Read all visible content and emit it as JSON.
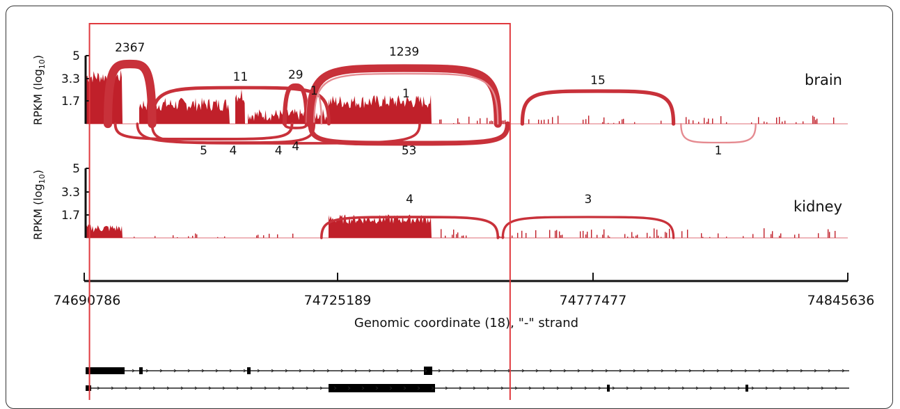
{
  "chart_data": {
    "type": "sashimi",
    "tracks": [
      {
        "name": "brain",
        "ylabel": "RPKM (log",
        "ylabel_sub": "10",
        "ylabel_close": ")",
        "y_ticks": [
          "5",
          "3.3",
          "1.7"
        ],
        "junctions_above": [
          {
            "count": "2367",
            "from": 74694000,
            "to": 74700000,
            "weight": 2367
          },
          {
            "count": "11",
            "from": 74700000,
            "to": 74724000,
            "weight": 11
          },
          {
            "count": "29",
            "from": 74718000,
            "to": 74721000,
            "weight": 29
          },
          {
            "count": "1",
            "from": 74721000,
            "to": 74723000,
            "weight": 1
          },
          {
            "count": "1239",
            "from": 74721500,
            "to": 74758000,
            "weight": 1239
          },
          {
            "count": "1",
            "from": 74722000,
            "to": 74758000,
            "weight": 1
          },
          {
            "count": "15",
            "from": 74763000,
            "to": 74799000,
            "weight": 15
          }
        ],
        "junctions_below": [
          {
            "count": "5",
            "from": 74695000,
            "to": 74719000,
            "weight": 5
          },
          {
            "count": "4",
            "from": 74700000,
            "to": 74722000,
            "weight": 4
          },
          {
            "count": "4",
            "from": 74698000,
            "to": 74742000,
            "weight": 4
          },
          {
            "count": "4",
            "from": 74718000,
            "to": 74721000,
            "weight": 4
          },
          {
            "count": "53",
            "from": 74721500,
            "to": 74760000,
            "weight": 53
          },
          {
            "count": "1",
            "from": 74801000,
            "to": 74821000,
            "weight": 1
          }
        ]
      },
      {
        "name": "kidney",
        "ylabel": "RPKM (log",
        "ylabel_sub": "10",
        "ylabel_close": ")",
        "y_ticks": [
          "5",
          "3.3",
          "1.7"
        ],
        "junctions_above": [
          {
            "count": "4",
            "from": 74723000,
            "to": 74758000,
            "weight": 4
          },
          {
            "count": "3",
            "from": 74759000,
            "to": 74799000,
            "weight": 3
          }
        ],
        "junctions_below": []
      }
    ],
    "x_ticks": [
      "74690786",
      "74725189",
      "74777477",
      "74845636"
    ],
    "xlabel": "Genomic coordinate (18), \"-\" strand",
    "highlight": {
      "from": 74691500,
      "to": 74760500
    },
    "colors": {
      "signal": "#c0202a",
      "arc": "#c8313a",
      "arc_light": "#e58a90",
      "highlight": "#e0393e",
      "axis": "#111111"
    }
  }
}
